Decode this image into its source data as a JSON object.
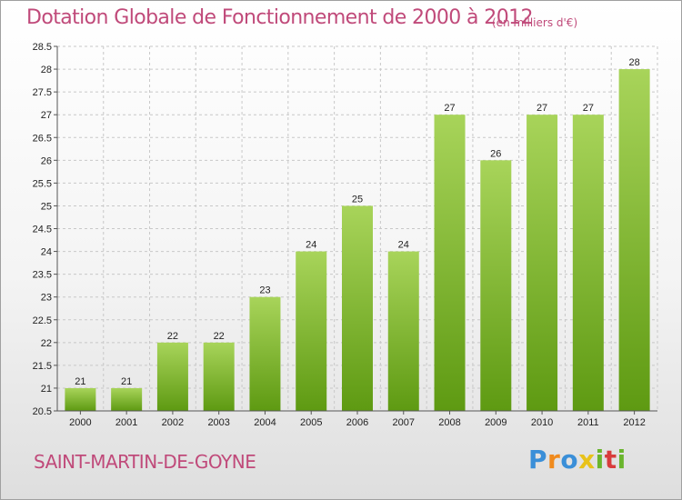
{
  "header": {
    "title": "Dotation Globale de Fonctionnement de 2000 à 2012",
    "unit": "(en milliers d'€)"
  },
  "footer": {
    "commune": "SAINT-MARTIN-DE-GOYNE",
    "logo_letters": [
      "P",
      "r",
      "o",
      "x",
      "i",
      "t",
      "i"
    ],
    "logo_colors": [
      "#3a8fd8",
      "#f08a1c",
      "#3a8fd8",
      "#e8c21a",
      "#6ab52d",
      "#d83c3c",
      "#6ab52d"
    ]
  },
  "colors": {
    "bar_top": "#a8d45a",
    "bar_bottom": "#5e9a12",
    "grid": "#c8c8c8",
    "axis": "#555555"
  },
  "chart_data": {
    "type": "bar",
    "categories": [
      "2000",
      "2001",
      "2002",
      "2003",
      "2004",
      "2005",
      "2006",
      "2007",
      "2008",
      "2009",
      "2010",
      "2011",
      "2012"
    ],
    "values": [
      21,
      21,
      22,
      22,
      23,
      24,
      25,
      24,
      27,
      26,
      27,
      27,
      28
    ],
    "ylim": [
      20.5,
      28.5
    ],
    "yticks": [
      "20.5",
      "21",
      "21.5",
      "22",
      "22.5",
      "23",
      "23.5",
      "24",
      "24.5",
      "25",
      "25.5",
      "26",
      "26.5",
      "27",
      "27.5",
      "28",
      "28.5"
    ],
    "grid": true
  }
}
